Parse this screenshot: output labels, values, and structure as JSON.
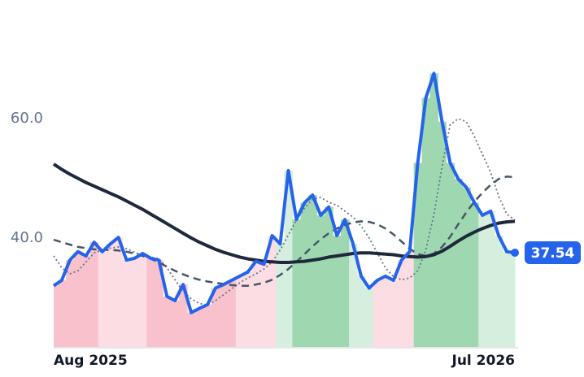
{
  "chart_data": {
    "type": "line",
    "x": [
      0,
      1,
      2,
      3,
      4,
      5,
      6,
      7,
      8,
      9,
      10,
      11,
      12,
      13,
      14,
      15,
      16,
      17,
      18,
      19,
      20,
      21,
      22,
      23,
      24,
      25,
      26,
      27,
      28,
      29,
      30,
      31,
      32,
      33,
      34,
      35,
      36,
      37,
      38,
      39,
      40,
      41,
      42,
      43,
      44,
      45,
      46,
      47,
      48,
      49,
      50,
      51,
      52,
      53,
      54,
      55,
      56,
      57
    ],
    "xlim": [
      0,
      57
    ],
    "xticks": [
      {
        "value": 0,
        "label": "Aug 2025"
      },
      {
        "value": 57,
        "label": "Jul 2026"
      }
    ],
    "ylim": [
      21.6,
      75
    ],
    "yticks": [
      {
        "value": 40,
        "label": "40.0"
      },
      {
        "value": 60,
        "label": "60.0"
      }
    ],
    "area_colors": [
      "#f8c1cc",
      "#f8c1cc",
      "#f8c1cc",
      "#f8c1cc",
      "#f8c1cc",
      "#f8c1cc",
      "#fcdde3",
      "#fcdde3",
      "#fcdde3",
      "#fcdde3",
      "#fcdde3",
      "#fcdde3",
      "#f8c1cc",
      "#f8c1cc",
      "#f8c1cc",
      "#f8c1cc",
      "#f8c1cc",
      "#f8c1cc",
      "#f8c1cc",
      "#f8c1cc",
      "#f8c1cc",
      "#f8c1cc",
      "#f8c1cc",
      "#fcdde3",
      "#fcdde3",
      "#fcdde3",
      "#fcdde3",
      "#fcdde3",
      "#d5eedd",
      "#d5eedd",
      "#9fd8b0",
      "#9fd8b0",
      "#9fd8b0",
      "#9fd8b0",
      "#9fd8b0",
      "#9fd8b0",
      "#9fd8b0",
      "#d5eedd",
      "#d5eedd",
      "#d5eedd",
      "#fcdde3",
      "#fcdde3",
      "#fcdde3",
      "#fcdde3",
      "#fcdde3",
      "#9fd8b0",
      "#9fd8b0",
      "#9fd8b0",
      "#9fd8b0",
      "#9fd8b0",
      "#9fd8b0",
      "#9fd8b0",
      "#9fd8b0",
      "#d5eedd",
      "#d5eedd",
      "#d5eedd",
      "#d5eedd",
      "#d5eedd"
    ],
    "series": [
      {
        "color": "#2563eb",
        "width": 4,
        "dash": "none",
        "area": true,
        "values": [
          32.0,
          32.9,
          36.3,
          37.7,
          37.0,
          39.3,
          37.7,
          39.0,
          40.1,
          36.3,
          36.6,
          37.4,
          36.6,
          36.3,
          30.2,
          29.5,
          32.2,
          27.5,
          28.2,
          28.8,
          31.6,
          32.2,
          32.9,
          33.6,
          34.3,
          36.1,
          35.6,
          40.4,
          39.0,
          51.3,
          43.1,
          45.9,
          47.2,
          43.8,
          45.2,
          40.4,
          43.1,
          39.0,
          33.6,
          31.6,
          32.9,
          33.6,
          32.9,
          36.3,
          37.7,
          52.6,
          63.5,
          67.6,
          59.5,
          52.6,
          49.9,
          48.5,
          45.9,
          43.8,
          44.5,
          40.4,
          37.7,
          37.54
        ],
        "value_labels": [
          null,
          null,
          null,
          null,
          null,
          null,
          null,
          null,
          null,
          null,
          null,
          null,
          null,
          null,
          null,
          null,
          null,
          null,
          null,
          null,
          null,
          null,
          null,
          null,
          null,
          null,
          null,
          null,
          null,
          null,
          null,
          null,
          null,
          null,
          null,
          null,
          null,
          null,
          null,
          null,
          null,
          null,
          null,
          null,
          null,
          null,
          null,
          null,
          null,
          null,
          null,
          null,
          null,
          null,
          null,
          null,
          null,
          "37.54"
        ]
      },
      {
        "color": "#64748b",
        "width": 1.8,
        "dash": "2 3",
        "area": false,
        "values": [
          37,
          35,
          34,
          34.5,
          36,
          37.5,
          38,
          38.3,
          38.5,
          38.2,
          37.6,
          37,
          36.8,
          36.5,
          35,
          33,
          31,
          29.8,
          29,
          28.8,
          29.5,
          30.5,
          31.5,
          32.5,
          33.3,
          34,
          34.8,
          36,
          38,
          40.5,
          43,
          45,
          46.5,
          46.8,
          46,
          45.5,
          44.5,
          43.5,
          42,
          40,
          37.5,
          35,
          33.5,
          33,
          33.3,
          34.5,
          38,
          44,
          52,
          59,
          60,
          59.5,
          57,
          54,
          51,
          47,
          44,
          43
        ]
      },
      {
        "color": "#475569",
        "width": 2.5,
        "dash": "9 6",
        "area": false,
        "values": [
          39.7,
          39.3,
          38.9,
          38.5,
          38.3,
          38.1,
          38.0,
          38.0,
          37.9,
          37.7,
          37.4,
          37.0,
          36.5,
          35.9,
          35.2,
          34.5,
          33.9,
          33.4,
          33.0,
          32.7,
          32.5,
          32.3,
          32.1,
          32.0,
          32.0,
          32.2,
          32.5,
          33.0,
          33.8,
          34.8,
          36.0,
          37.3,
          38.6,
          39.8,
          40.8,
          41.6,
          42.2,
          42.6,
          42.8,
          42.7,
          42.3,
          41.6,
          40.6,
          39.4,
          38.2,
          37.3,
          37.0,
          37.4,
          38.5,
          40.2,
          42.3,
          44.3,
          46.1,
          47.6,
          48.9,
          49.9,
          50.3,
          50.2
        ]
      },
      {
        "color": "#1e293b",
        "width": 4,
        "dash": "none",
        "area": false,
        "values": [
          52.4,
          51.5,
          50.7,
          50.0,
          49.3,
          48.7,
          48.1,
          47.5,
          46.9,
          46.2,
          45.5,
          44.8,
          44.0,
          43.2,
          42.4,
          41.6,
          40.8,
          40.0,
          39.3,
          38.7,
          38.1,
          37.6,
          37.2,
          36.8,
          36.5,
          36.3,
          36.1,
          36.0,
          35.9,
          35.9,
          36.0,
          36.1,
          36.3,
          36.5,
          36.8,
          37.0,
          37.2,
          37.4,
          37.5,
          37.5,
          37.4,
          37.3,
          37.2,
          37.0,
          36.9,
          36.8,
          36.9,
          37.2,
          37.8,
          38.6,
          39.5,
          40.3,
          41.0,
          41.6,
          42.1,
          42.5,
          42.7,
          42.8
        ]
      }
    ]
  }
}
